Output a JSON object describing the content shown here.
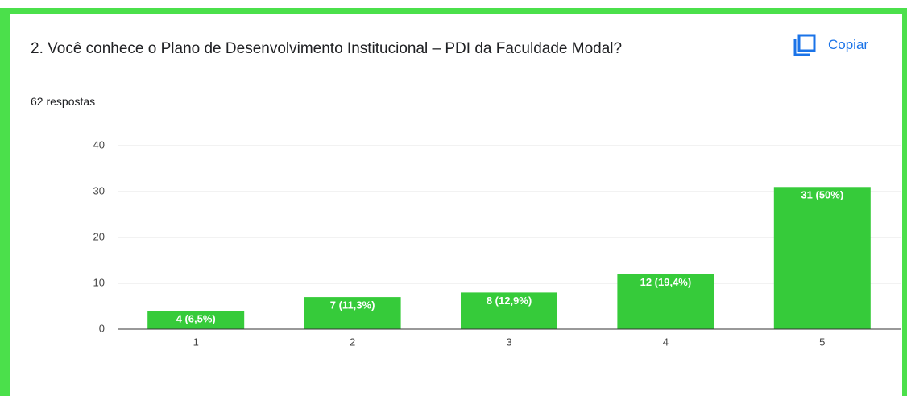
{
  "title": "2. Você conhece o Plano de Desenvolvimento Institucional – PDI da Faculdade Modal?",
  "subtitle": "62 respostas",
  "copy_button": "Copiar",
  "chart_data": {
    "type": "bar",
    "categories": [
      "1",
      "2",
      "3",
      "4",
      "5"
    ],
    "values": [
      4,
      7,
      8,
      12,
      31
    ],
    "value_labels": [
      "4 (6,5%)",
      "7 (11,3%)",
      "8 (12,9%)",
      "12 (19,4%)",
      "31 (50%)"
    ],
    "color": "#36cb3a",
    "ylim": [
      0,
      40
    ],
    "yticks": [
      0,
      10,
      20,
      30,
      40
    ],
    "grid": true
  }
}
